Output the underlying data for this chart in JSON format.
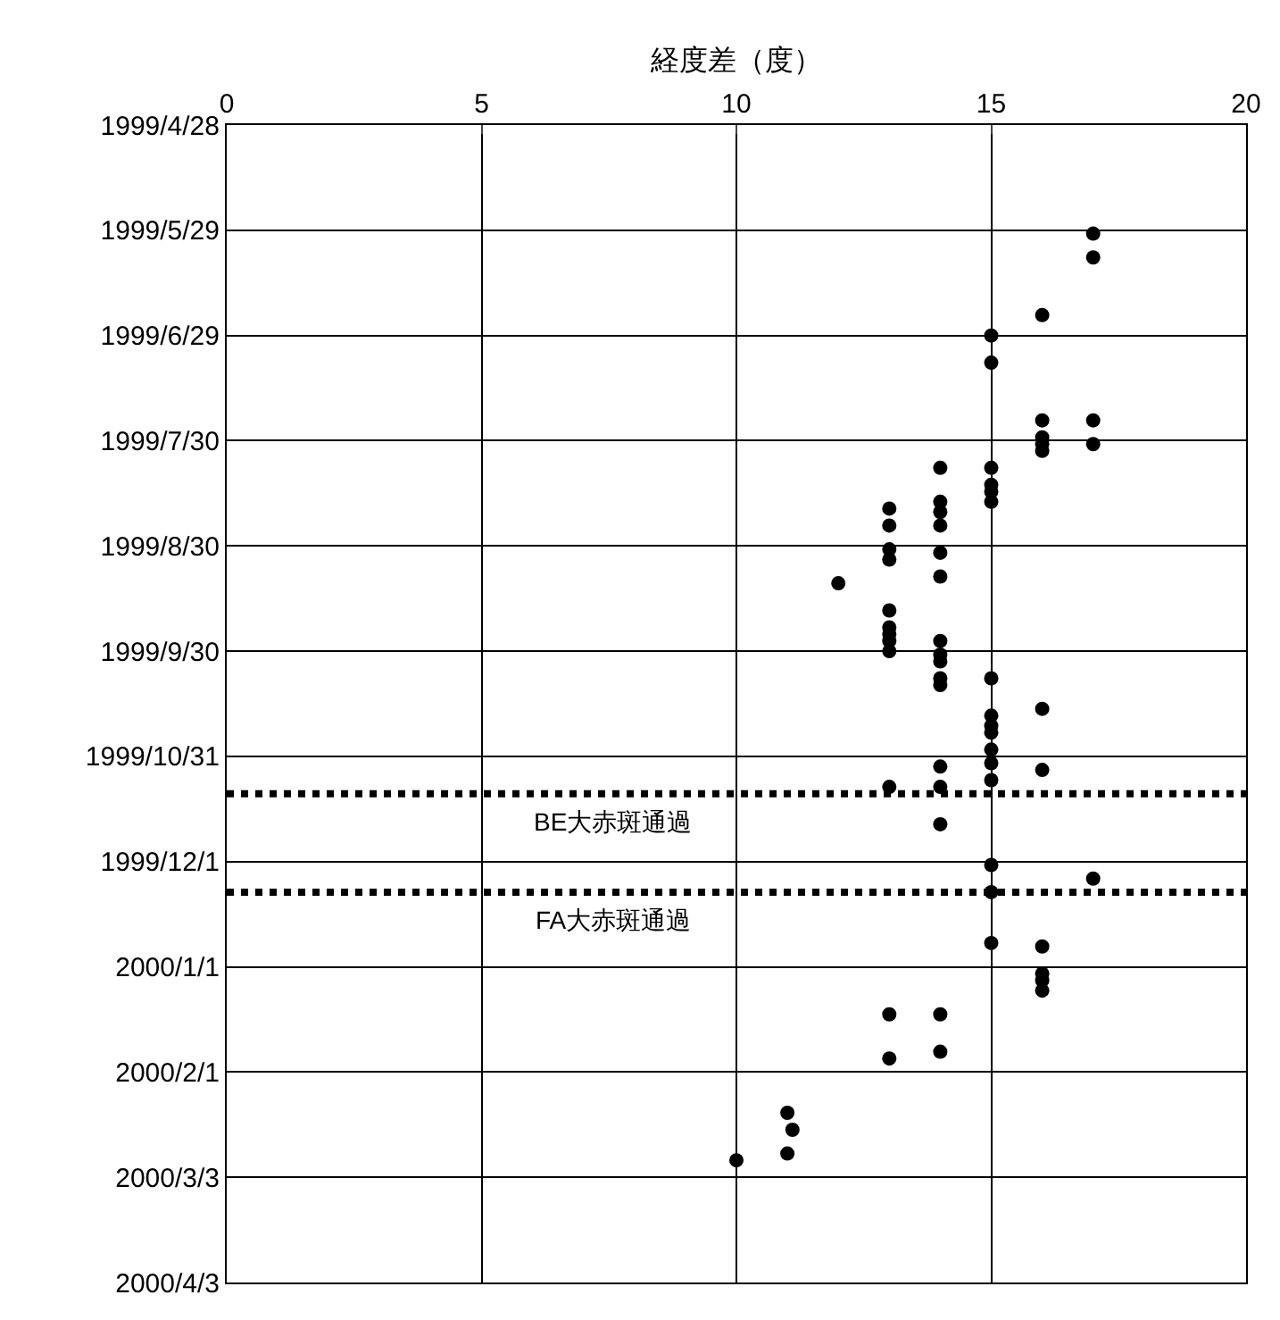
{
  "chart_data": {
    "type": "scatter",
    "orientation": "horizontal",
    "xlabel": "経度差（度）",
    "x": [
      "1999-05-30",
      "1999-06-06",
      "1999-06-23",
      "1999-06-29",
      "1999-07-07",
      "1999-07-24",
      "1999-07-24",
      "1999-07-29",
      "1999-07-31",
      "1999-07-31",
      "1999-08-02",
      "1999-08-07",
      "1999-08-12",
      "1999-08-14",
      "1999-08-17",
      "1999-08-07",
      "1999-08-17",
      "1999-08-20",
      "1999-08-24",
      "1999-08-19",
      "1999-08-24",
      "1999-08-31",
      "1999-09-03",
      "1999-09-01",
      "1999-09-08",
      "1999-09-10",
      "1999-09-18",
      "1999-09-23",
      "1999-09-25",
      "1999-09-27",
      "1999-09-30",
      "1999-09-27",
      "1999-10-01",
      "1999-10-03",
      "1999-10-08",
      "1999-10-10",
      "1999-10-08",
      "1999-10-17",
      "1999-10-19",
      "1999-10-22",
      "1999-10-24",
      "1999-10-29",
      "1999-11-02",
      "1999-11-07",
      "1999-11-03",
      "1999-11-09",
      "1999-11-09",
      "1999-11-04",
      "1999-11-20",
      "1999-12-02",
      "1999-12-10",
      "1999-12-06",
      "1999-12-25",
      "1999-12-26",
      "2000-01-03",
      "2000-01-05",
      "2000-01-08",
      "2000-01-15",
      "2000-01-15",
      "2000-01-28",
      "2000-01-26",
      "2000-02-13",
      "2000-02-18",
      "2000-02-25",
      "2000-02-27"
    ],
    "series": [
      {
        "color": "#000000",
        "values": [
          17,
          17,
          16,
          15,
          15,
          16,
          17,
          16,
          16,
          17,
          16,
          15,
          15,
          15,
          15,
          14,
          14,
          14,
          14,
          13,
          13,
          13,
          13,
          14,
          14,
          12,
          13,
          13,
          13,
          13,
          13,
          14,
          14,
          14,
          14,
          14,
          15,
          16,
          15,
          15,
          15,
          15,
          15,
          15,
          14,
          14,
          13,
          16,
          14,
          15,
          15,
          17,
          15,
          16,
          16,
          16,
          16,
          13,
          14,
          13,
          14,
          11,
          11.1,
          11,
          10
        ]
      }
    ],
    "xlim": [
      0,
      20
    ],
    "xticks": [
      0,
      5,
      10,
      15,
      20
    ],
    "ylim": [
      "2000-04-03",
      "1999-04-28"
    ],
    "yticks": [
      {
        "value": "1999-04-28",
        "label": "1999/4/28"
      },
      {
        "value": "1999-05-29",
        "label": "1999/5/29"
      },
      {
        "value": "1999-06-29",
        "label": "1999/6/29"
      },
      {
        "value": "1999-07-30",
        "label": "1999/7/30"
      },
      {
        "value": "1999-08-30",
        "label": "1999/8/30"
      },
      {
        "value": "1999-09-30",
        "label": "1999/9/30"
      },
      {
        "value": "1999-10-31",
        "label": "1999/10/31"
      },
      {
        "value": "1999-12-01",
        "label": "1999/12/1"
      },
      {
        "value": "2000-01-01",
        "label": "2000/1/1"
      },
      {
        "value": "2000-02-01",
        "label": "2000/2/1"
      },
      {
        "value": "2000-03-03",
        "label": "2000/3/3"
      },
      {
        "value": "2000-04-03",
        "label": "2000/4/3"
      }
    ],
    "ref_lines": [
      {
        "axis": "y",
        "value": "1999-11-11",
        "label": "BE大赤斑通過",
        "color": "#000000",
        "line_style": "dotted"
      },
      {
        "axis": "y",
        "value": "1999-12-10",
        "label": "FA大赤斑通過",
        "color": "#000000",
        "line_style": "dotted"
      }
    ],
    "grid": true,
    "marker": "circle"
  }
}
